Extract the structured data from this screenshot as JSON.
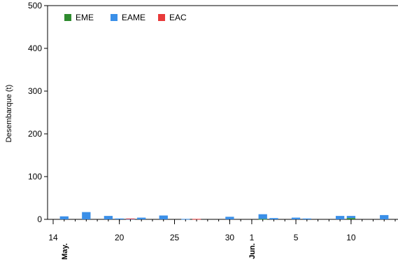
{
  "chart_data": {
    "type": "bar",
    "stacked": true,
    "ylabel": "Desembarque (t)",
    "ylim": [
      0,
      500
    ],
    "yticks": [
      0,
      100,
      200,
      300,
      400,
      500
    ],
    "xlim": [
      "2024-05-14",
      "2024-06-14"
    ],
    "grid": false,
    "legend_position": "top-left",
    "x_tick_labels": [
      {
        "date": "2024-05-14",
        "label": "14"
      },
      {
        "date": "2024-05-20",
        "label": "20"
      },
      {
        "date": "2024-05-25",
        "label": "25"
      },
      {
        "date": "2024-05-30",
        "label": "30"
      },
      {
        "date": "2024-06-01",
        "label": "1"
      },
      {
        "date": "2024-06-05",
        "label": "5"
      },
      {
        "date": "2024-06-10",
        "label": "10"
      }
    ],
    "month_labels": [
      {
        "date": "2024-05-15",
        "label": "May."
      },
      {
        "date": "2024-06-01",
        "label": "Jun."
      }
    ],
    "x": [
      "2024-05-15",
      "2024-05-17",
      "2024-05-19",
      "2024-05-20",
      "2024-05-21",
      "2024-05-22",
      "2024-05-24",
      "2024-05-26",
      "2024-05-27",
      "2024-05-30",
      "2024-06-02",
      "2024-06-03",
      "2024-06-05",
      "2024-06-06",
      "2024-06-09",
      "2024-06-10",
      "2024-06-13"
    ],
    "series": [
      {
        "name": "EME",
        "color": "#2e8b2e",
        "values": [
          0,
          0,
          0,
          0,
          0,
          0,
          0,
          0,
          0,
          0,
          1,
          0,
          0,
          0,
          0,
          3,
          0
        ]
      },
      {
        "name": "EAME",
        "color": "#3a8fe8",
        "values": [
          7,
          17,
          8,
          2,
          1,
          4,
          9,
          1,
          0,
          6,
          11,
          3,
          4,
          2,
          8,
          5,
          10
        ]
      },
      {
        "name": "EAC",
        "color": "#e83a3a",
        "values": [
          0,
          0,
          0,
          0,
          1,
          0,
          0,
          0,
          1,
          0,
          0,
          0,
          0,
          0,
          0,
          0,
          0
        ]
      }
    ]
  }
}
